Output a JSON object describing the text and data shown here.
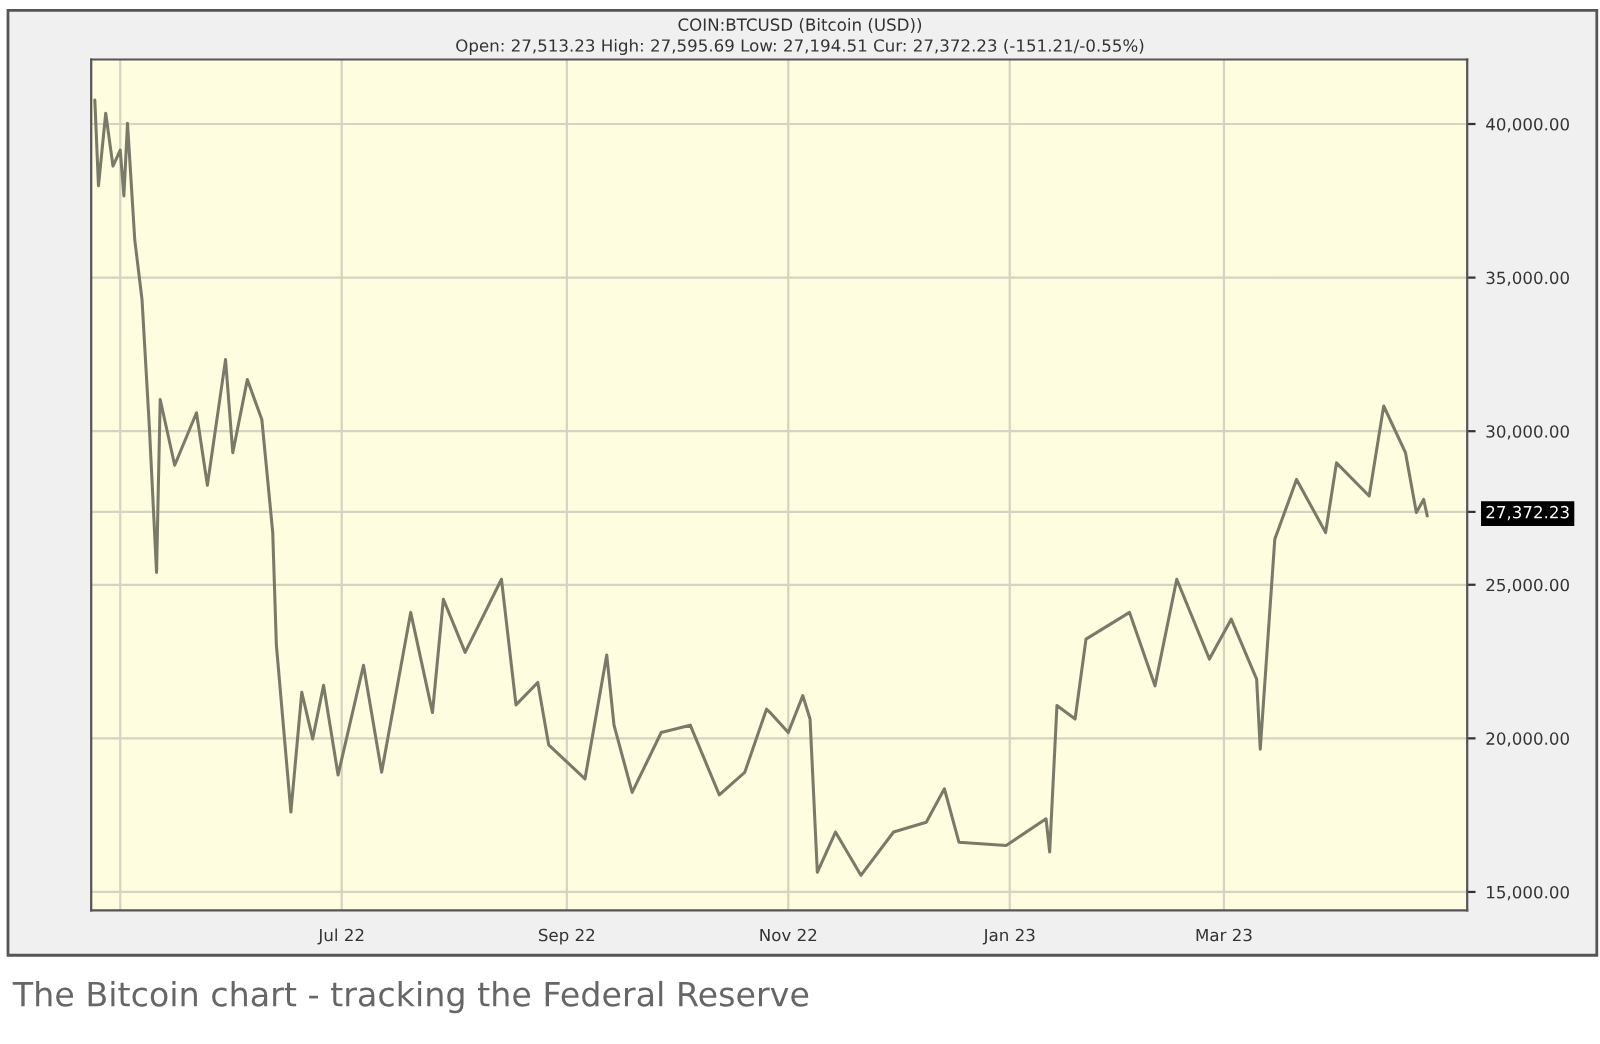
{
  "chart_data": {
    "type": "line",
    "title": "COIN:BTCUSD (Bitcoin (USD))",
    "subtitle": "Open: 27,513.23 High: 27,595.69 Low: 27,194.51 Cur: 27,372.23 (-151.21/-0.55%)",
    "annotations": [
      "The Bitcoin chart - tracking the Federal Reserve"
    ],
    "x": [
      "2022-04-24",
      "2022-04-25",
      "2022-04-27",
      "2022-04-29",
      "2022-05-01",
      "2022-05-02",
      "2022-05-03",
      "2022-05-05",
      "2022-05-07",
      "2022-05-09",
      "2022-05-11",
      "2022-05-12",
      "2022-05-16",
      "2022-05-22",
      "2022-05-25",
      "2022-05-30",
      "2022-06-01",
      "2022-06-05",
      "2022-06-09",
      "2022-06-12",
      "2022-06-13",
      "2022-06-17",
      "2022-06-20",
      "2022-06-23",
      "2022-06-26",
      "2022-06-30",
      "2022-07-07",
      "2022-07-12",
      "2022-07-20",
      "2022-07-26",
      "2022-07-29",
      "2022-08-04",
      "2022-08-14",
      "2022-08-18",
      "2022-08-24",
      "2022-08-27",
      "2022-09-06",
      "2022-09-12",
      "2022-09-14",
      "2022-09-19",
      "2022-09-27",
      "2022-10-05",
      "2022-10-13",
      "2022-10-20",
      "2022-10-26",
      "2022-10-27",
      "2022-11-01",
      "2022-11-05",
      "2022-11-07",
      "2022-11-09",
      "2022-11-14",
      "2022-11-21",
      "2022-11-30",
      "2022-12-09",
      "2022-12-14",
      "2022-12-18",
      "2022-12-31",
      "2023-01-11",
      "2023-01-12",
      "2023-01-14",
      "2023-01-19",
      "2023-01-22",
      "2023-02-03",
      "2023-02-10",
      "2023-02-16",
      "2023-02-25",
      "2023-03-03",
      "2023-03-10",
      "2023-03-11",
      "2023-03-15",
      "2023-03-21",
      "2023-03-29",
      "2023-04-01",
      "2023-04-10",
      "2023-04-14",
      "2023-04-20",
      "2023-04-23",
      "2023-04-25",
      "2023-04-26"
    ],
    "series": [
      {
        "color": "#7a7a68",
        "values": [
          40780,
          37990,
          40350,
          38630,
          39150,
          37660,
          40020,
          36230,
          34280,
          30180,
          25400,
          31030,
          28890,
          30600,
          28240,
          32330,
          29300,
          31680,
          30380,
          26700,
          23040,
          17600,
          21500,
          19980,
          21730,
          18810,
          22380,
          18900,
          24100,
          20840,
          24530,
          22800,
          25180,
          21090,
          21820,
          19790,
          18680,
          22710,
          20430,
          18240,
          20190,
          20430,
          18160,
          18890,
          20950,
          20840,
          20190,
          21390,
          20630,
          15640,
          16950,
          15540,
          16950,
          17270,
          18360,
          16620,
          16510,
          17380,
          16300,
          21070,
          20630,
          23230,
          24100,
          21710,
          25180,
          22580,
          23880,
          21930,
          19650,
          26480,
          28430,
          26700,
          28970,
          27890,
          30820,
          29300,
          27350,
          27780,
          27240
        ]
      }
    ],
    "xlim": [
      "2022-04-23",
      "2023-05-07"
    ],
    "xticks": [
      {
        "value": "2022-05-01",
        "label": null
      },
      {
        "value": "2022-07-01",
        "label": "Jul 22"
      },
      {
        "value": "2022-09-01",
        "label": "Sep 22"
      },
      {
        "value": "2022-11-01",
        "label": "Nov 22"
      },
      {
        "value": "2023-01-01",
        "label": "Jan 23"
      },
      {
        "value": "2023-03-01",
        "label": "Mar 23"
      }
    ],
    "ylim": [
      14400,
      42100
    ],
    "yticks": [
      {
        "value": 15000,
        "label": "15,000.00"
      },
      {
        "value": 20000,
        "label": "20,000.00"
      },
      {
        "value": 25000,
        "label": "25,000.00"
      },
      {
        "value": 27372.23,
        "label": "27,372.23"
      },
      {
        "value": 30000,
        "label": "30,000.00"
      },
      {
        "value": 35000,
        "label": "35,000.00"
      },
      {
        "value": 40000,
        "label": "40,000.00"
      }
    ],
    "grid": true,
    "legend": false,
    "marker": "none",
    "line_style": "solid"
  }
}
